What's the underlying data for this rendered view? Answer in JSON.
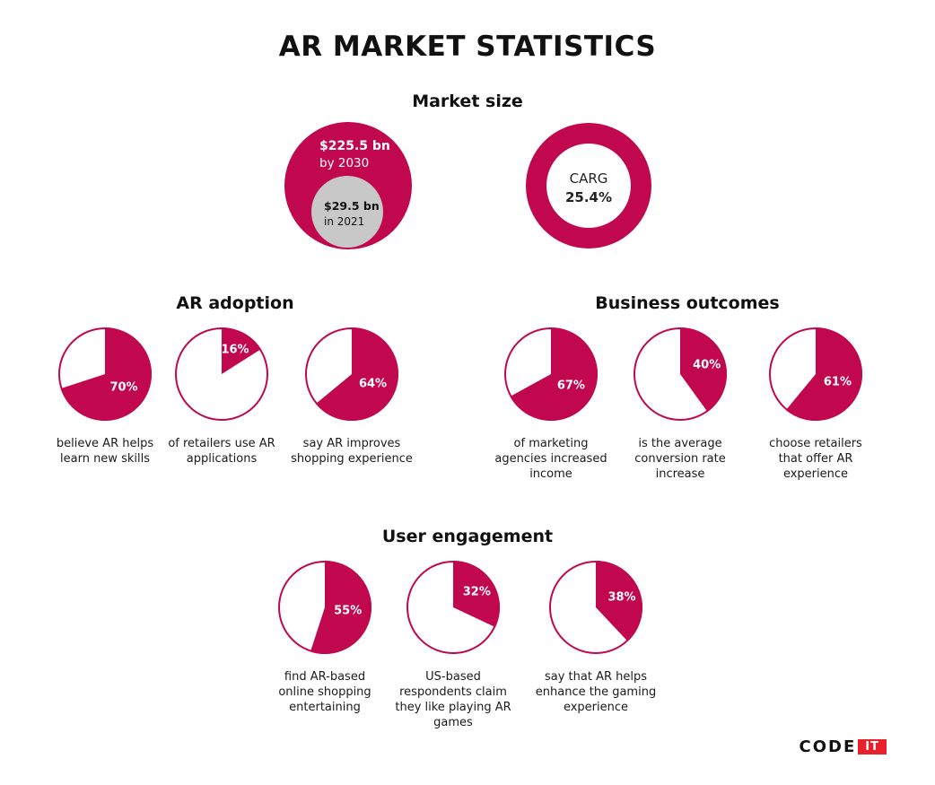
{
  "title": "AR MARKET STATISTICS",
  "sections": {
    "market_size": "Market size",
    "ar_adoption": "AR adoption",
    "business_outcomes": "Business outcomes",
    "user_engagement": "User engagement"
  },
  "market": {
    "value_2030": "$225.5 bn",
    "label_2030": "by 2030",
    "value_2021": "$29.5 bn",
    "label_2021": "in 2021",
    "carg_label": "CARG",
    "carg_value": "25.4%"
  },
  "colors": {
    "accent": "#c1084e",
    "neutral": "#c8c8c8",
    "logo_red": "#e8202a"
  },
  "logo": {
    "code": "CODE",
    "it": "IT"
  },
  "chart_data": [
    {
      "type": "pie",
      "group": "AR adoption",
      "items": [
        {
          "label": "70%",
          "value": 70,
          "caption": "believe AR helps learn new skills"
        },
        {
          "label": "16%",
          "value": 16,
          "caption": "of retailers use AR applications"
        },
        {
          "label": "64%",
          "value": 64,
          "caption": "say AR improves shopping experience"
        }
      ]
    },
    {
      "type": "pie",
      "group": "Business outcomes",
      "items": [
        {
          "label": "67%",
          "value": 67,
          "caption": "of marketing agencies increased income"
        },
        {
          "label": "40%",
          "value": 40,
          "caption": "is the average conversion rate increase"
        },
        {
          "label": "61%",
          "value": 61,
          "caption": "choose retailers that offer AR experience"
        }
      ]
    },
    {
      "type": "pie",
      "group": "User engagement",
      "items": [
        {
          "label": "55%",
          "value": 55,
          "caption": "find AR-based online shopping entertaining"
        },
        {
          "label": "32%",
          "value": 32,
          "caption": "US-based respondents claim they like playing AR games"
        },
        {
          "label": "38%",
          "value": 38,
          "caption": "say that AR helps enhance the gaming experience"
        }
      ]
    }
  ]
}
